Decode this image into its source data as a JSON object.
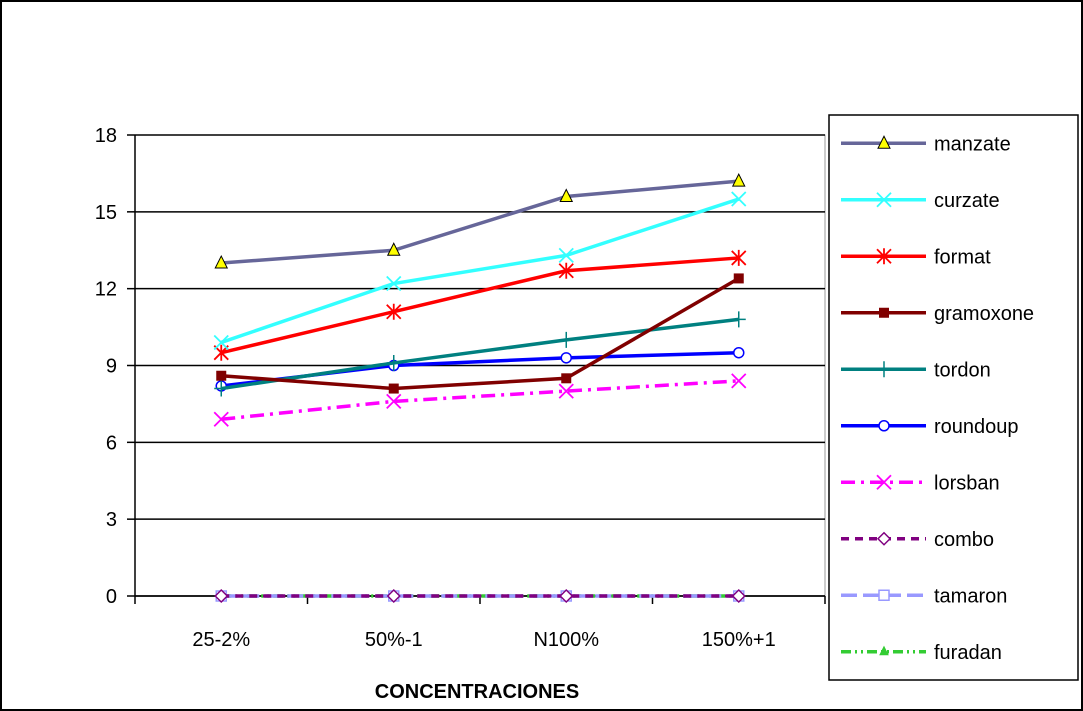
{
  "chart_data": {
    "type": "line",
    "title": "",
    "xlabel": "CONCENTRACIONES",
    "ylabel": "",
    "categories": [
      "25-2%",
      "50%-1",
      "N100%",
      "150%+1"
    ],
    "ylim": [
      0,
      18
    ],
    "yticks": [
      "0",
      "3",
      "6",
      "9",
      "12",
      "15",
      "18"
    ],
    "grid": "horizontal",
    "legend_position": "right",
    "series": [
      {
        "name": "manzate",
        "color": "#666699",
        "marker": "triangle",
        "dash": "solid",
        "values": [
          13.0,
          13.5,
          15.6,
          16.2
        ]
      },
      {
        "name": "curzate",
        "color": "#33FFFF",
        "marker": "x",
        "dash": "solid",
        "values": [
          9.9,
          12.2,
          13.3,
          15.5
        ]
      },
      {
        "name": "format",
        "color": "#FF0000",
        "marker": "star",
        "dash": "solid",
        "values": [
          9.5,
          11.1,
          12.7,
          13.2
        ]
      },
      {
        "name": "gramoxone",
        "color": "#800000",
        "marker": "square",
        "dash": "solid",
        "values": [
          8.6,
          8.1,
          8.5,
          12.4
        ]
      },
      {
        "name": "tordon",
        "color": "#008080",
        "marker": "plus",
        "dash": "solid",
        "values": [
          8.1,
          9.1,
          10.0,
          10.8
        ]
      },
      {
        "name": "roundoup",
        "color": "#0000FF",
        "marker": "circle",
        "dash": "solid",
        "values": [
          8.2,
          9.0,
          9.3,
          9.5
        ]
      },
      {
        "name": "lorsban",
        "color": "#FF00FF",
        "marker": "x",
        "dash": "dashdot",
        "values": [
          6.9,
          7.6,
          8.0,
          8.4
        ]
      },
      {
        "name": "combo",
        "color": "#800080",
        "marker": "diamond",
        "dash": "dash",
        "values": [
          0,
          0,
          0,
          0
        ]
      },
      {
        "name": "tamaron",
        "color": "#9999FF",
        "marker": "square-open",
        "dash": "longdash",
        "values": [
          0,
          0,
          0,
          0
        ]
      },
      {
        "name": "furadan",
        "color": "#33CC33",
        "marker": "triangle-small",
        "dash": "dashdotdot",
        "values": [
          0,
          0,
          0,
          0
        ]
      }
    ]
  }
}
